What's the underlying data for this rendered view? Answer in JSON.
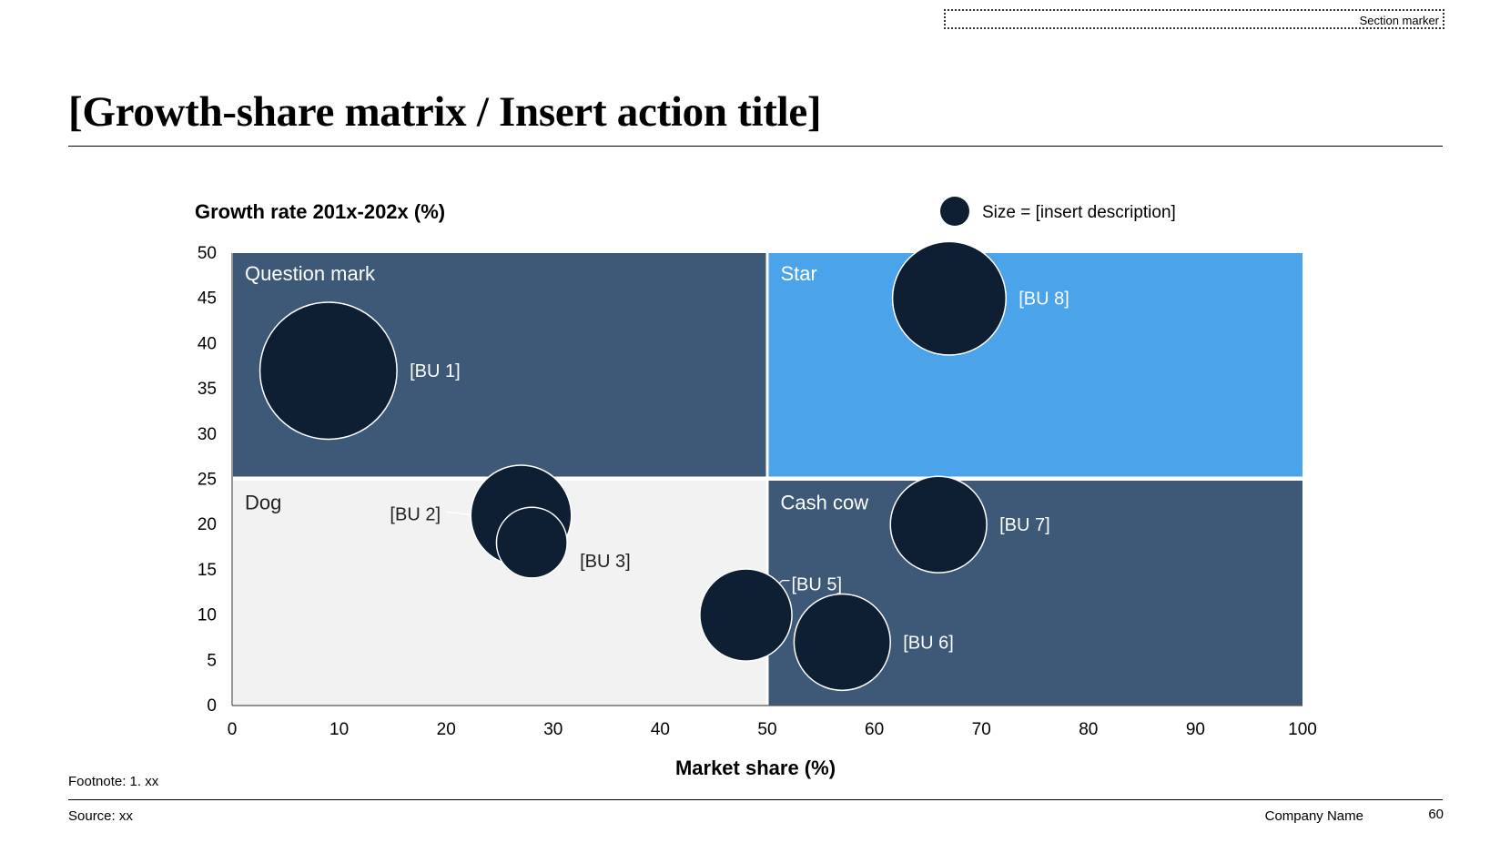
{
  "header": {
    "section_marker": "Section marker",
    "title": "[Growth-share matrix / Insert action title]"
  },
  "footer": {
    "footnote": "Footnote: 1. xx",
    "source": "Source: xx",
    "company": "Company Name",
    "page_number": "60"
  },
  "colors": {
    "question_mark": "#3E5877",
    "star": "#4BA3E9",
    "dog": "#F2F2F2",
    "cash_cow": "#3E5877",
    "bubble": "#0F1F33",
    "bubble_edge": "#FFFFFF"
  },
  "chart_data": {
    "type": "scatter",
    "variant": "bubble",
    "ylabel": "Growth rate 201x-202x (%)",
    "xlabel": "Market share (%)",
    "xlim": [
      0,
      100
    ],
    "ylim": [
      0,
      50
    ],
    "xticks": [
      0,
      10,
      20,
      30,
      40,
      50,
      60,
      70,
      80,
      90,
      100
    ],
    "yticks": [
      0,
      5,
      10,
      15,
      20,
      25,
      30,
      35,
      40,
      45,
      50
    ],
    "grid": false,
    "legend": {
      "label": "Size = [insert description]",
      "placement": "top-right"
    },
    "quadrants": [
      {
        "label": "Question mark",
        "x": [
          0,
          50
        ],
        "y": [
          25,
          50
        ],
        "color_key": "question_mark",
        "text_color": "#FFFFFF"
      },
      {
        "label": "Star",
        "x": [
          50,
          100
        ],
        "y": [
          25,
          50
        ],
        "color_key": "star",
        "text_color": "#FFFFFF"
      },
      {
        "label": "Dog",
        "x": [
          0,
          50
        ],
        "y": [
          0,
          25
        ],
        "color_key": "dog",
        "text_color": "#222222"
      },
      {
        "label": "Cash cow",
        "x": [
          50,
          100
        ],
        "y": [
          0,
          25
        ],
        "color_key": "cash_cow",
        "text_color": "#FFFFFF"
      }
    ],
    "points": [
      {
        "label": "[BU 1]",
        "x": 9,
        "y": 37,
        "size": 6.4,
        "label_color": "#FFFFFF"
      },
      {
        "label": "[BU 2]",
        "x": 27,
        "y": 21,
        "size": 4.7,
        "label_color": "#222222"
      },
      {
        "label": "[BU 3]",
        "x": 28,
        "y": 18,
        "size": 3.3,
        "label_color": "#222222"
      },
      {
        "label": "[BU 5]",
        "x": 48,
        "y": 10,
        "size": 4.3,
        "label_color": "#FFFFFF"
      },
      {
        "label": "[BU 6]",
        "x": 57,
        "y": 7,
        "size": 4.5,
        "label_color": "#FFFFFF"
      },
      {
        "label": "[BU 7]",
        "x": 66,
        "y": 20,
        "size": 4.5,
        "label_color": "#FFFFFF"
      },
      {
        "label": "[BU 8]",
        "x": 67,
        "y": 45,
        "size": 5.3,
        "label_color": "#FFFFFF"
      }
    ]
  }
}
